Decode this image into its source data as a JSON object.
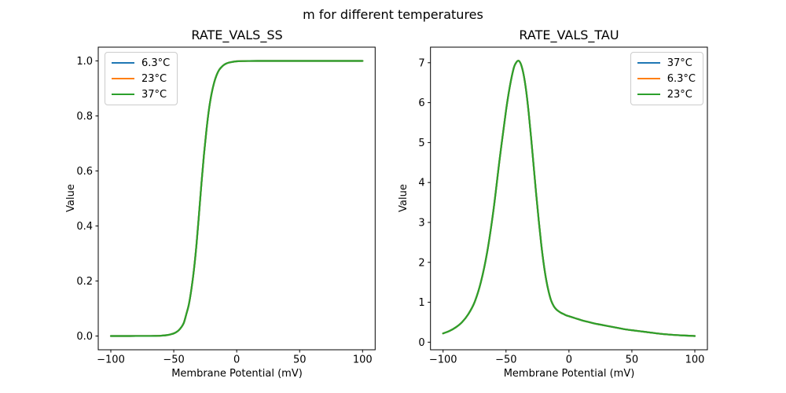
{
  "figure": {
    "suptitle": "m for different temperatures",
    "background": "#ffffff",
    "text_color": "#000000",
    "palette": [
      "#1f77b4",
      "#ff7f0e",
      "#2ca02c"
    ]
  },
  "chart_data": [
    {
      "type": "line",
      "title": "RATE_VALS_SS",
      "xlabel": "Membrane Potential (mV)",
      "ylabel": "Value",
      "xlim": [
        -110,
        110
      ],
      "ylim": [
        -0.05,
        1.05
      ],
      "grid": false,
      "xticks": [
        {
          "value": -100,
          "label": "−100"
        },
        {
          "value": -50,
          "label": "−50"
        },
        {
          "value": 0,
          "label": "0"
        },
        {
          "value": 50,
          "label": "50"
        },
        {
          "value": 100,
          "label": "100"
        }
      ],
      "yticks": [
        {
          "value": 0.0,
          "label": "0.0"
        },
        {
          "value": 0.2,
          "label": "0.2"
        },
        {
          "value": 0.4,
          "label": "0.4"
        },
        {
          "value": 0.6,
          "label": "0.6"
        },
        {
          "value": 0.8,
          "label": "0.8"
        },
        {
          "value": 1.0,
          "label": "1.0"
        }
      ],
      "legend": {
        "position": "upper-left"
      },
      "note": "All three temperature series coincide exactly; only the last-drawn (green) curve is visible.",
      "x": [
        -100,
        -90,
        -80,
        -70,
        -65,
        -60,
        -55,
        -52,
        -50,
        -48,
        -46,
        -44,
        -42,
        -40,
        -38,
        -36,
        -34,
        -32,
        -30,
        -28,
        -26,
        -24,
        -22,
        -20,
        -18,
        -16,
        -14,
        -12,
        -10,
        -8,
        -6,
        -4,
        -2,
        0,
        5,
        10,
        20,
        30,
        40,
        50,
        60,
        70,
        80,
        90,
        100
      ],
      "series": [
        {
          "name": "6.3°C",
          "color": "#1f77b4",
          "values": [
            0.0,
            0.0,
            0.0001,
            0.0002,
            0.0004,
            0.0012,
            0.0035,
            0.0067,
            0.0095,
            0.014,
            0.021,
            0.032,
            0.048,
            0.08,
            0.115,
            0.17,
            0.24,
            0.33,
            0.44,
            0.555,
            0.66,
            0.75,
            0.825,
            0.88,
            0.92,
            0.948,
            0.967,
            0.978,
            0.986,
            0.991,
            0.994,
            0.996,
            0.9975,
            0.9985,
            0.9995,
            0.9998,
            1.0,
            1.0,
            1.0,
            1.0,
            1.0,
            1.0,
            1.0,
            1.0,
            1.0
          ]
        },
        {
          "name": "23°C",
          "color": "#ff7f0e",
          "values": [
            0.0,
            0.0,
            0.0001,
            0.0002,
            0.0004,
            0.0012,
            0.0035,
            0.0067,
            0.0095,
            0.014,
            0.021,
            0.032,
            0.048,
            0.08,
            0.115,
            0.17,
            0.24,
            0.33,
            0.44,
            0.555,
            0.66,
            0.75,
            0.825,
            0.88,
            0.92,
            0.948,
            0.967,
            0.978,
            0.986,
            0.991,
            0.994,
            0.996,
            0.9975,
            0.9985,
            0.9995,
            0.9998,
            1.0,
            1.0,
            1.0,
            1.0,
            1.0,
            1.0,
            1.0,
            1.0,
            1.0
          ]
        },
        {
          "name": "37°C",
          "color": "#2ca02c",
          "values": [
            0.0,
            0.0,
            0.0001,
            0.0002,
            0.0004,
            0.0012,
            0.0035,
            0.0067,
            0.0095,
            0.014,
            0.021,
            0.032,
            0.048,
            0.08,
            0.115,
            0.17,
            0.24,
            0.33,
            0.44,
            0.555,
            0.66,
            0.75,
            0.825,
            0.88,
            0.92,
            0.948,
            0.967,
            0.978,
            0.986,
            0.991,
            0.994,
            0.996,
            0.9975,
            0.9985,
            0.9995,
            0.9998,
            1.0,
            1.0,
            1.0,
            1.0,
            1.0,
            1.0,
            1.0,
            1.0,
            1.0
          ]
        }
      ]
    },
    {
      "type": "line",
      "title": "RATE_VALS_TAU",
      "xlabel": "Membrane Potential (mV)",
      "ylabel": "Value",
      "xlim": [
        -110,
        110
      ],
      "ylim": [
        -0.19,
        7.39
      ],
      "grid": false,
      "xticks": [
        {
          "value": -100,
          "label": "−100"
        },
        {
          "value": -50,
          "label": "−50"
        },
        {
          "value": 0,
          "label": "0"
        },
        {
          "value": 50,
          "label": "50"
        },
        {
          "value": 100,
          "label": "100"
        }
      ],
      "yticks": [
        {
          "value": 0,
          "label": "0"
        },
        {
          "value": 1,
          "label": "1"
        },
        {
          "value": 2,
          "label": "2"
        },
        {
          "value": 3,
          "label": "3"
        },
        {
          "value": 4,
          "label": "4"
        },
        {
          "value": 5,
          "label": "5"
        },
        {
          "value": 6,
          "label": "6"
        },
        {
          "value": 7,
          "label": "7"
        }
      ],
      "legend": {
        "position": "upper-right"
      },
      "note": "All three temperature series coincide exactly; peak ≈7.05 at −40 mV; only the last-drawn (green) curve is visible.",
      "x": [
        -100,
        -95,
        -90,
        -85,
        -80,
        -75,
        -70,
        -65,
        -60,
        -55,
        -50,
        -47,
        -44,
        -42,
        -40,
        -38,
        -36,
        -34,
        -32,
        -30,
        -28,
        -26,
        -24,
        -22,
        -20,
        -18,
        -16,
        -14,
        -12,
        -10,
        -8,
        -6,
        -4,
        -2,
        0,
        5,
        10,
        15,
        20,
        25,
        30,
        35,
        40,
        45,
        50,
        60,
        70,
        80,
        90,
        100
      ],
      "series": [
        {
          "name": "37°C",
          "color": "#1f77b4",
          "values": [
            0.22,
            0.28,
            0.37,
            0.5,
            0.7,
            1.0,
            1.5,
            2.25,
            3.3,
            4.6,
            5.8,
            6.4,
            6.85,
            7.0,
            7.05,
            6.95,
            6.7,
            6.3,
            5.75,
            5.1,
            4.4,
            3.7,
            3.05,
            2.45,
            1.95,
            1.55,
            1.25,
            1.03,
            0.9,
            0.82,
            0.77,
            0.73,
            0.7,
            0.67,
            0.65,
            0.6,
            0.55,
            0.51,
            0.47,
            0.44,
            0.41,
            0.38,
            0.35,
            0.32,
            0.3,
            0.26,
            0.22,
            0.19,
            0.17,
            0.155
          ]
        },
        {
          "name": "6.3°C",
          "color": "#ff7f0e",
          "values": [
            0.22,
            0.28,
            0.37,
            0.5,
            0.7,
            1.0,
            1.5,
            2.25,
            3.3,
            4.6,
            5.8,
            6.4,
            6.85,
            7.0,
            7.05,
            6.95,
            6.7,
            6.3,
            5.75,
            5.1,
            4.4,
            3.7,
            3.05,
            2.45,
            1.95,
            1.55,
            1.25,
            1.03,
            0.9,
            0.82,
            0.77,
            0.73,
            0.7,
            0.67,
            0.65,
            0.6,
            0.55,
            0.51,
            0.47,
            0.44,
            0.41,
            0.38,
            0.35,
            0.32,
            0.3,
            0.26,
            0.22,
            0.19,
            0.17,
            0.155
          ]
        },
        {
          "name": "23°C",
          "color": "#2ca02c",
          "values": [
            0.22,
            0.28,
            0.37,
            0.5,
            0.7,
            1.0,
            1.5,
            2.25,
            3.3,
            4.6,
            5.8,
            6.4,
            6.85,
            7.0,
            7.05,
            6.95,
            6.7,
            6.3,
            5.75,
            5.1,
            4.4,
            3.7,
            3.05,
            2.45,
            1.95,
            1.55,
            1.25,
            1.03,
            0.9,
            0.82,
            0.77,
            0.73,
            0.7,
            0.67,
            0.65,
            0.6,
            0.55,
            0.51,
            0.47,
            0.44,
            0.41,
            0.38,
            0.35,
            0.32,
            0.3,
            0.26,
            0.22,
            0.19,
            0.17,
            0.155
          ]
        }
      ]
    }
  ]
}
